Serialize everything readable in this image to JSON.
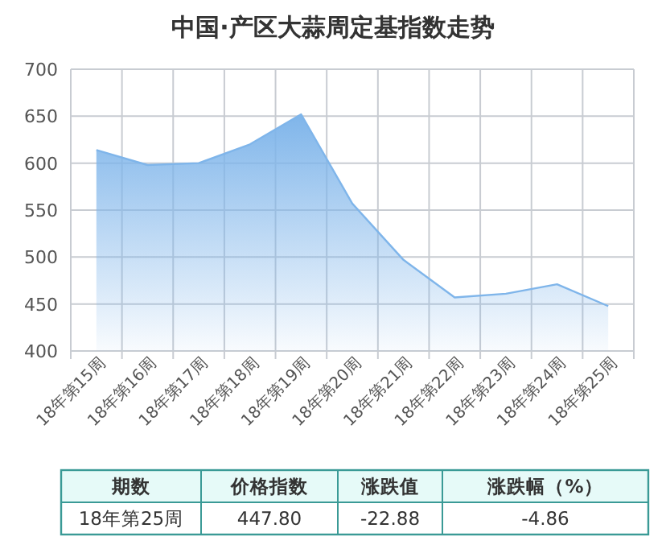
{
  "chart_data": {
    "type": "area",
    "title": "中国·产区大蒜周定基指数走势",
    "categories": [
      "18年第15周",
      "18年第16周",
      "18年第17周",
      "18年第18周",
      "18年第19周",
      "18年第20周",
      "18年第21周",
      "18年第22周",
      "18年第23周",
      "18年第24周",
      "18年第25周"
    ],
    "values": [
      614,
      598,
      600,
      620,
      652,
      557,
      497,
      457,
      461,
      471,
      447.8
    ],
    "color": "#7fb5ea",
    "ylim": [
      400,
      700
    ],
    "yticks": [
      400,
      450,
      500,
      550,
      600,
      650,
      700
    ],
    "grid": true,
    "annotations": [
      "期数",
      "价格指数",
      "涨跌值",
      "涨跌幅（%）",
      "18年第25周",
      "447.80",
      "-22.88",
      "-4.86"
    ]
  }
}
